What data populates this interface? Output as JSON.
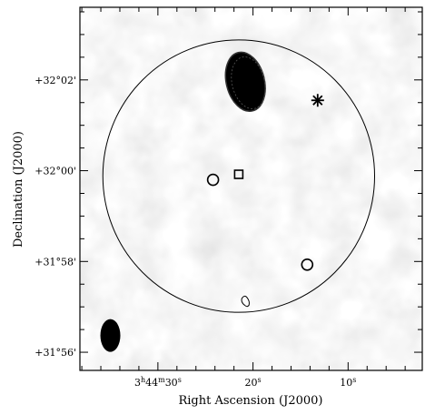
{
  "chart_data": {
    "type": "scatter",
    "title": "",
    "xlabel": "Right Ascension (J2000)",
    "ylabel": "Declination (J2000)",
    "x_axis": {
      "unit": "seconds of RA offset from 3h44m00s",
      "range": [
        38.2,
        2.2
      ],
      "reversed": true,
      "ticks": [
        {
          "value": 30,
          "h": "3",
          "m": "44",
          "s": "30",
          "label_suffix": "s",
          "full_label": "3h44m30s"
        },
        {
          "value": 20,
          "s": "20",
          "label_suffix": "s",
          "full_label": "20s"
        },
        {
          "value": 10,
          "s": "10",
          "label_suffix": "s",
          "full_label": "10s"
        }
      ]
    },
    "y_axis": {
      "unit": "arcmin above +31°",
      "range": [
        55.6,
        63.6
      ],
      "ticks": [
        {
          "value": 56,
          "label": "+31°56'"
        },
        {
          "value": 58,
          "label": "+31°58'"
        },
        {
          "value": 60,
          "label": "+32°00'"
        },
        {
          "value": 62,
          "label": "+32°02'"
        }
      ]
    },
    "grid": false,
    "background": "greyscale radio map",
    "field_circle": {
      "ra_s": 21.5,
      "dec": 59.88,
      "radius_arcmin": 3.0
    },
    "markers": [
      {
        "kind": "square",
        "ra_s": 21.5,
        "dec": 59.92
      },
      {
        "kind": "open-circle",
        "ra_s": 24.2,
        "dec": 59.8
      },
      {
        "kind": "open-circle",
        "ra_s": 14.3,
        "dec": 57.93
      },
      {
        "kind": "asterisk",
        "ra_s": 13.2,
        "dec": 61.55
      }
    ],
    "contours": [
      {
        "kind": "filled-source",
        "ra_s": 20.8,
        "dec": 61.96
      },
      {
        "kind": "open-contour",
        "ra_s": 20.8,
        "dec": 57.12
      }
    ],
    "beam": {
      "ra_s": 35.0,
      "dec": 56.37
    },
    "colors": {
      "ink": "#000000",
      "map_base": "#e4e4e4"
    }
  }
}
